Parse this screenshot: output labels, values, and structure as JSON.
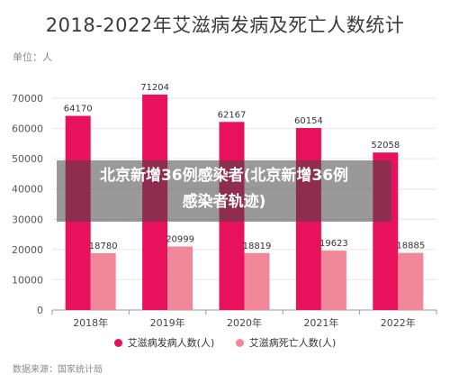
{
  "chart_data": {
    "type": "bar",
    "title": "2018-2022年艾滋病发病及死亡人数统计",
    "unit_label": "单位：人",
    "source": "数据来源：国家统计局",
    "categories": [
      "2018年",
      "2019年",
      "2020年",
      "2021年",
      "2022年"
    ],
    "ylim": [
      0,
      70000
    ],
    "yticks": [
      0,
      10000,
      20000,
      30000,
      40000,
      50000,
      60000,
      70000
    ],
    "grid": true,
    "legend_position": "bottom",
    "series": [
      {
        "name": "艾滋病发病人数(人)",
        "color": "#e8115b",
        "values": [
          64170,
          71204,
          62167,
          60154,
          52058
        ]
      },
      {
        "name": "艾滋病死亡人数(人)",
        "color": "#f0889a",
        "values": [
          18780,
          20999,
          18819,
          19623,
          18885
        ]
      }
    ]
  },
  "overlay": {
    "line1": "北京新增36例感染者(北京新增36例",
    "line2": "感染者轨迹)"
  }
}
